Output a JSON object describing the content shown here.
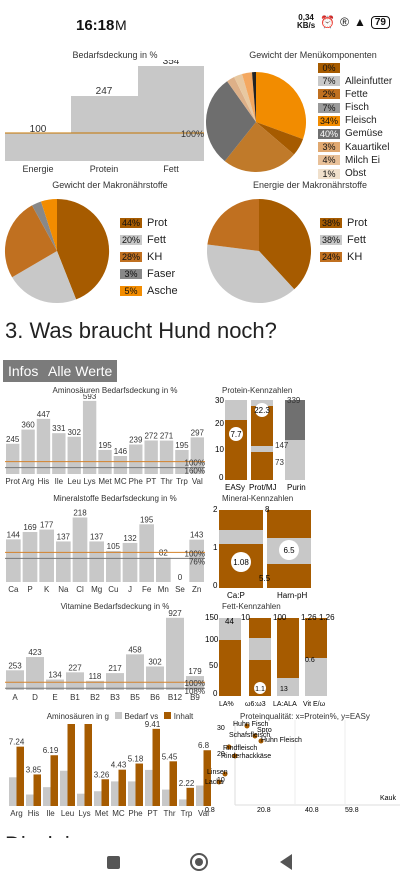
{
  "status": {
    "time": "16:18",
    "speed_top": "0,34",
    "speed_bottom": "KB/s",
    "battery": "79"
  },
  "colors": {
    "brown": "#a65b00",
    "lightbrown": "#c07020",
    "orange": "#f28c00",
    "gray": "#c8c8c8",
    "darkgray": "#707070",
    "line": "#d4822a"
  },
  "chart_bedarf": {
    "title": "Bedarfsdeckung in %",
    "categories": [
      "Energie",
      "Protein",
      "Fett"
    ],
    "values": [
      100,
      247,
      354
    ],
    "labels": [
      "100",
      "247",
      "354"
    ],
    "ref_label": "100%"
  },
  "chart_menu": {
    "title": "Gewicht der Menükomponenten",
    "legend": [
      {
        "pct": "0%",
        "label": ""
      },
      {
        "pct": "7%",
        "label": "Alleinfutter"
      },
      {
        "pct": "2%",
        "label": "Fette"
      },
      {
        "pct": "7%",
        "label": "Fisch"
      },
      {
        "pct": "34%",
        "label": "Fleisch"
      },
      {
        "pct": "40%",
        "label": "Gemüse"
      },
      {
        "pct": "3%",
        "label": "Kauartikel"
      },
      {
        "pct": "4%",
        "label": "Milch Ei"
      },
      {
        "pct": "1%",
        "label": "Obst"
      }
    ]
  },
  "chart_makro_gewicht": {
    "title": "Gewicht der Makronährstoffe",
    "legend": [
      {
        "pct": "44%",
        "label": "Prot"
      },
      {
        "pct": "20%",
        "label": "Fett"
      },
      {
        "pct": "28%",
        "label": "KH"
      },
      {
        "pct": "3%",
        "label": "Faser"
      },
      {
        "pct": "5%",
        "label": "Asche"
      }
    ]
  },
  "chart_makro_energie": {
    "title": "Energie der Makronährstoffe",
    "legend": [
      {
        "pct": "38%",
        "label": "Prot"
      },
      {
        "pct": "38%",
        "label": "Fett"
      },
      {
        "pct": "24%",
        "label": "KH"
      }
    ]
  },
  "section_title": "3. Was braucht Hund noch?",
  "buttons": {
    "infos": "Infos",
    "alle_werte": "Alle Werte"
  },
  "chart_amino": {
    "title": "Aminosäuren Bedarfsdeckung in %",
    "categories": [
      "Prot",
      "Arg",
      "His",
      "Ile",
      "Leu",
      "Lys",
      "Met",
      "MC",
      "Phe",
      "PT",
      "Thr",
      "Trp",
      "Val"
    ],
    "values": [
      245,
      360,
      447,
      331,
      302,
      593,
      195,
      146,
      239,
      272,
      271,
      195,
      297
    ],
    "ref_labels": [
      "100%",
      "160%"
    ]
  },
  "chart_protein_kenn": {
    "title": "Protein-Kennzahlen",
    "yticks": [
      "30",
      "20",
      "10",
      "0"
    ],
    "xlabels": [
      "EASy",
      "Prot/MJ",
      "Purin"
    ],
    "values": [
      "7.7",
      "22.3",
      "339",
      "147",
      "73"
    ],
    "ticks_r": [
      "200",
      "100",
      "0"
    ]
  },
  "chart_mineral": {
    "title": "Mineralstoffe Bedarfsdeckung in %",
    "categories": [
      "Ca",
      "P",
      "K",
      "Na",
      "Cl",
      "Mg",
      "Cu",
      "J",
      "Fe",
      "Mn",
      "Se",
      "Zn"
    ],
    "values": [
      144,
      169,
      177,
      137,
      218,
      137,
      105,
      132,
      195,
      82,
      0,
      143
    ],
    "ref_labels": [
      "100%",
      "76%"
    ]
  },
  "chart_mineral_kenn": {
    "title": "Mineral-Kennzahlen",
    "yticks_l": [
      "2",
      "1",
      "0"
    ],
    "yticks_r": [
      "8",
      "7",
      "6",
      "5"
    ],
    "xlabels": [
      "Ca:P",
      "Harn-pH"
    ],
    "values": [
      "1.08",
      "6.5",
      "5.5"
    ]
  },
  "chart_vitamin": {
    "title": "Vitamine Bedarfsdeckung in %",
    "categories": [
      "A",
      "D",
      "E",
      "B1",
      "B2",
      "B3",
      "B5",
      "B6",
      "B12",
      "B9"
    ],
    "values": [
      253,
      423,
      134,
      227,
      118,
      217,
      458,
      302,
      927,
      179
    ],
    "ref_labels": [
      "100%",
      "108%"
    ]
  },
  "chart_fett_kenn": {
    "title": "Fett-Kennzahlen",
    "yticks": [
      "150",
      "100",
      "50",
      "0"
    ],
    "top_labels": [
      "44",
      "10",
      "100",
      "1.26",
      "1.26"
    ],
    "xlabels": [
      "LA%",
      "ω6:ω3",
      "LA:ALA",
      "Vit E/ω"
    ],
    "values": [
      "1.1",
      "13",
      "0.6"
    ]
  },
  "chart_amino_inhalt": {
    "title": "Aminosäuren in g",
    "legend": [
      "Bedarf vs",
      "Inhalt"
    ],
    "categories": [
      "Arg",
      "His",
      "Ile",
      "Leu",
      "Lys",
      "Met",
      "MC",
      "Phe",
      "PT",
      "Thr",
      "Trp",
      "Val"
    ],
    "inhalt": [
      7.24,
      3.85,
      6.19,
      10,
      10,
      3.26,
      4.43,
      5.18,
      9.41,
      5.45,
      2.22,
      6.8
    ],
    "bedarf": [
      3.5,
      1.4,
      2.3,
      4.3,
      1.5,
      1.8,
      3.0,
      3.0,
      4.4,
      2.0,
      0.8,
      2.5
    ],
    "labels": [
      "7.24",
      "3.85",
      "6.19",
      "",
      "",
      "3.26",
      "4.43",
      "5.18",
      "9.41",
      "5.45",
      "2.22",
      "6.8"
    ],
    "yticks": [
      "6",
      "4",
      "2",
      "0"
    ]
  },
  "chart_protein_quality": {
    "title": "Proteinqualität: x=Protein%, y=EASy",
    "points": [
      "Huhn Fisch",
      "Schafsfleisch",
      "Huhn Fleisch",
      "Spro",
      "Rindfleisch",
      "Rinderhackkäse",
      "Linsen",
      "Lachs",
      "Kaul"
    ],
    "xticks": [
      "0.8",
      "20.8",
      "40.8",
      "59.8",
      "Kauk"
    ],
    "yticks": [
      "30",
      "20",
      "10"
    ]
  },
  "disclaimer": "Disclaimer"
}
